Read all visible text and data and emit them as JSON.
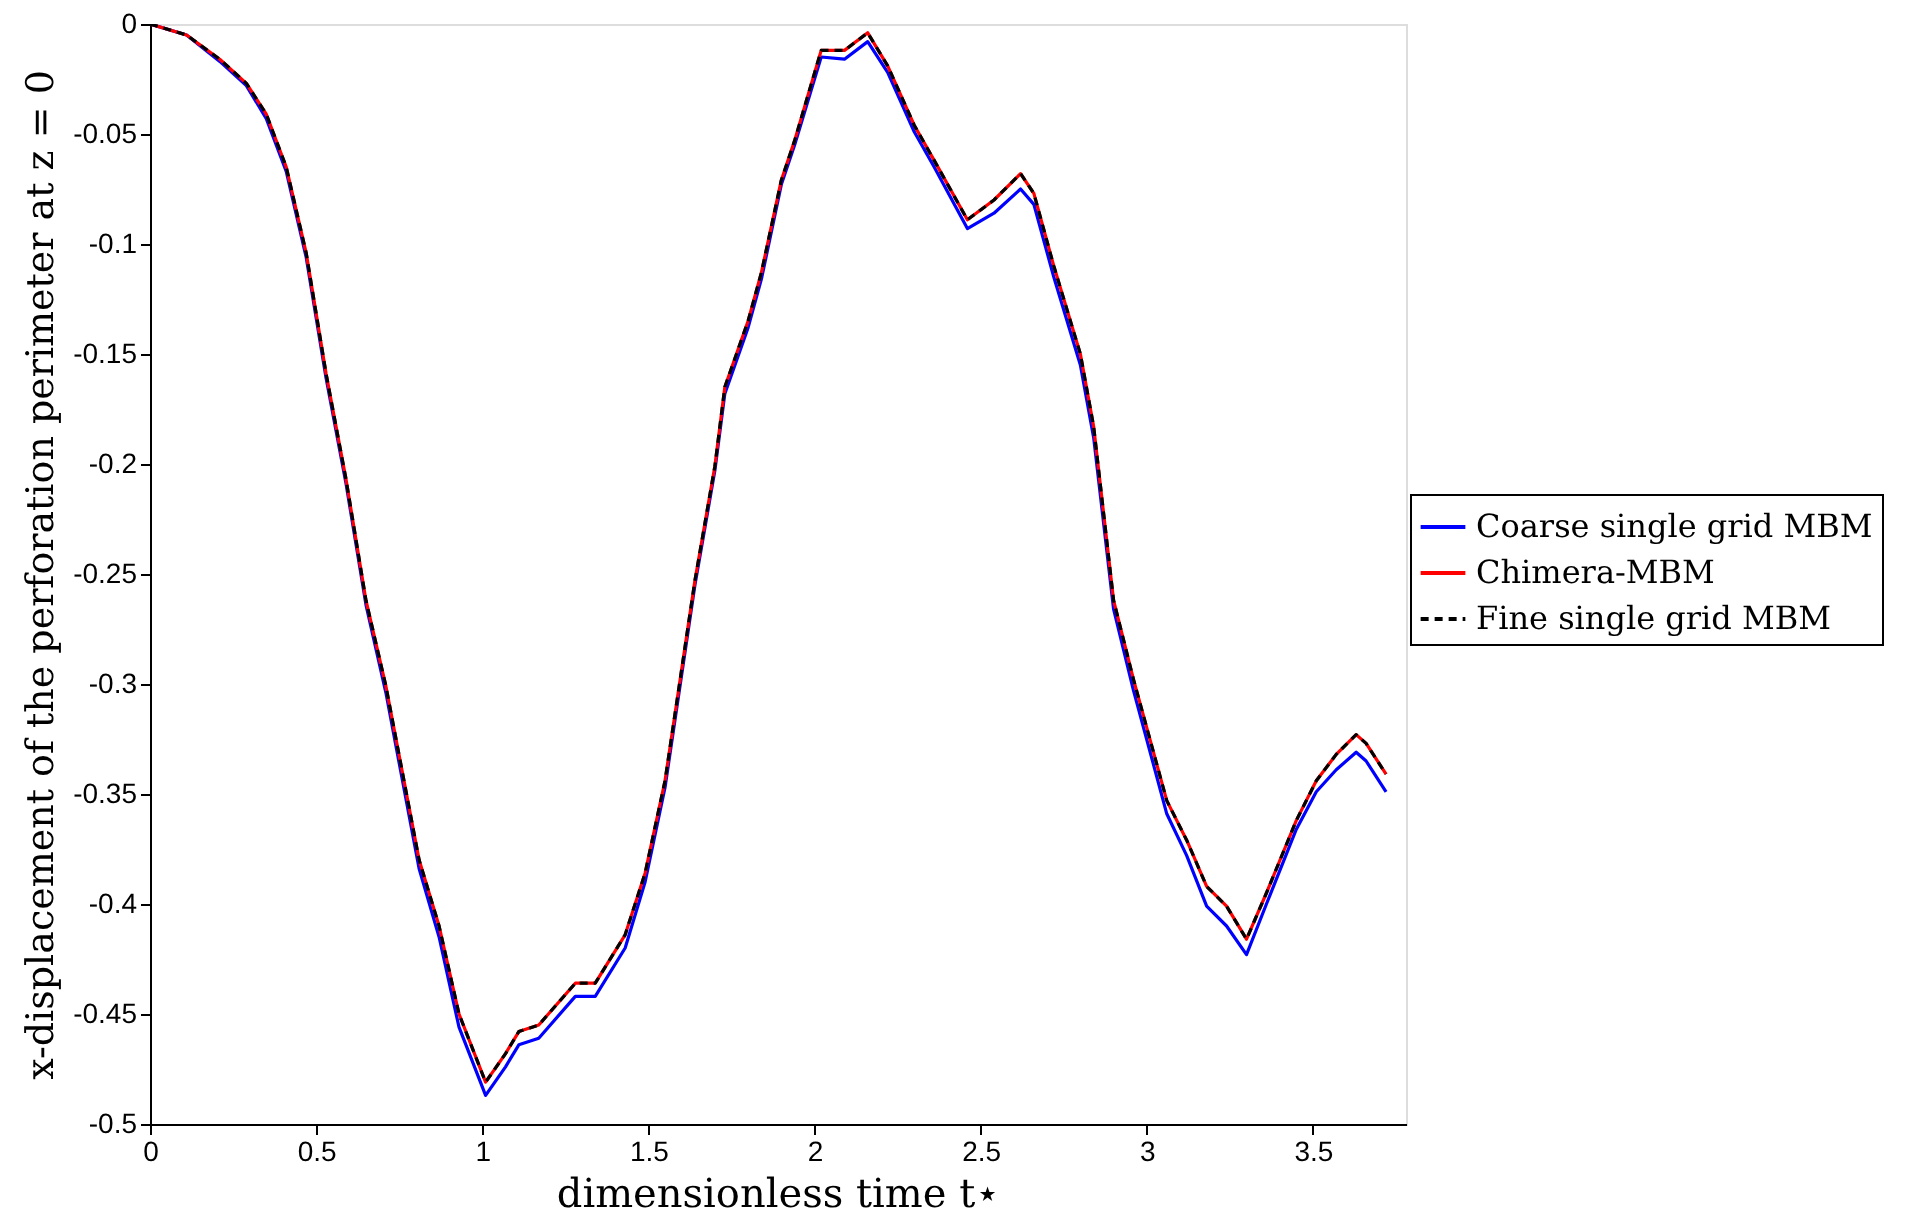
{
  "chart_data": {
    "type": "line",
    "xlabel": "dimensionless time t⋆",
    "ylabel": "x-displacement of the perforation perimeter at z = 0",
    "x": [
      0,
      0.11,
      0.21,
      0.29,
      0.35,
      0.41,
      0.47,
      0.53,
      0.59,
      0.65,
      0.71,
      0.81,
      0.87,
      0.93,
      1.01,
      1.07,
      1.11,
      1.17,
      1.28,
      1.34,
      1.43,
      1.49,
      1.55,
      1.64,
      1.7,
      1.73,
      1.8,
      1.84,
      1.9,
      1.94,
      2.02,
      2.09,
      2.16,
      2.22,
      2.3,
      2.36,
      2.46,
      2.54,
      2.62,
      2.66,
      2.72,
      2.8,
      2.84,
      2.9,
      2.96,
      3.06,
      3.12,
      3.18,
      3.24,
      3.3,
      3.36,
      3.45,
      3.51,
      3.57,
      3.63,
      3.66,
      3.72
    ],
    "series": [
      {
        "name": "Coarse single grid MBM",
        "color": "#0000ff",
        "line_style": "solid",
        "values": [
          0,
          -0.005,
          -0.017,
          -0.028,
          -0.043,
          -0.067,
          -0.106,
          -0.161,
          -0.209,
          -0.264,
          -0.304,
          -0.384,
          -0.415,
          -0.456,
          -0.487,
          -0.474,
          -0.464,
          -0.461,
          -0.442,
          -0.442,
          -0.42,
          -0.39,
          -0.347,
          -0.255,
          -0.203,
          -0.168,
          -0.138,
          -0.116,
          -0.073,
          -0.055,
          -0.015,
          -0.016,
          -0.008,
          -0.022,
          -0.049,
          -0.065,
          -0.093,
          -0.086,
          -0.075,
          -0.082,
          -0.115,
          -0.155,
          -0.188,
          -0.266,
          -0.303,
          -0.359,
          -0.378,
          -0.401,
          -0.41,
          -0.423,
          -0.4,
          -0.366,
          -0.349,
          -0.339,
          -0.331,
          -0.335,
          -0.349
        ]
      },
      {
        "name": "Chimera-MBM",
        "color": "#ff0000",
        "line_style": "solid",
        "values": [
          0,
          -0.005,
          -0.016,
          -0.027,
          -0.041,
          -0.065,
          -0.104,
          -0.159,
          -0.207,
          -0.262,
          -0.301,
          -0.38,
          -0.41,
          -0.45,
          -0.481,
          -0.468,
          -0.458,
          -0.455,
          -0.436,
          -0.436,
          -0.414,
          -0.386,
          -0.344,
          -0.253,
          -0.201,
          -0.165,
          -0.135,
          -0.113,
          -0.071,
          -0.053,
          -0.012,
          -0.012,
          -0.004,
          -0.019,
          -0.046,
          -0.062,
          -0.089,
          -0.08,
          -0.068,
          -0.077,
          -0.11,
          -0.15,
          -0.183,
          -0.262,
          -0.298,
          -0.353,
          -0.371,
          -0.392,
          -0.401,
          -0.416,
          -0.395,
          -0.362,
          -0.344,
          -0.332,
          -0.323,
          -0.327,
          -0.341
        ]
      },
      {
        "name": "Fine single grid MBM",
        "color": "#000000",
        "line_style": "dashed",
        "values": [
          0,
          -0.005,
          -0.016,
          -0.027,
          -0.041,
          -0.065,
          -0.104,
          -0.159,
          -0.207,
          -0.262,
          -0.301,
          -0.38,
          -0.41,
          -0.45,
          -0.481,
          -0.468,
          -0.458,
          -0.455,
          -0.436,
          -0.436,
          -0.414,
          -0.386,
          -0.344,
          -0.253,
          -0.201,
          -0.165,
          -0.135,
          -0.113,
          -0.071,
          -0.053,
          -0.012,
          -0.012,
          -0.004,
          -0.019,
          -0.046,
          -0.062,
          -0.089,
          -0.08,
          -0.068,
          -0.077,
          -0.11,
          -0.15,
          -0.183,
          -0.262,
          -0.298,
          -0.353,
          -0.371,
          -0.392,
          -0.401,
          -0.416,
          -0.395,
          -0.362,
          -0.344,
          -0.332,
          -0.323,
          -0.327,
          -0.341
        ]
      }
    ],
    "xlim": [
      0,
      3.78
    ],
    "ylim": [
      -0.5,
      0
    ],
    "xticks": [
      0,
      0.5,
      1,
      1.5,
      2,
      2.5,
      3,
      3.5
    ],
    "yticks": [
      0,
      -0.05,
      -0.1,
      -0.15,
      -0.2,
      -0.25,
      -0.3,
      -0.35,
      -0.4,
      -0.45,
      -0.5
    ],
    "grid": false,
    "legend": "right",
    "marker": "none"
  }
}
